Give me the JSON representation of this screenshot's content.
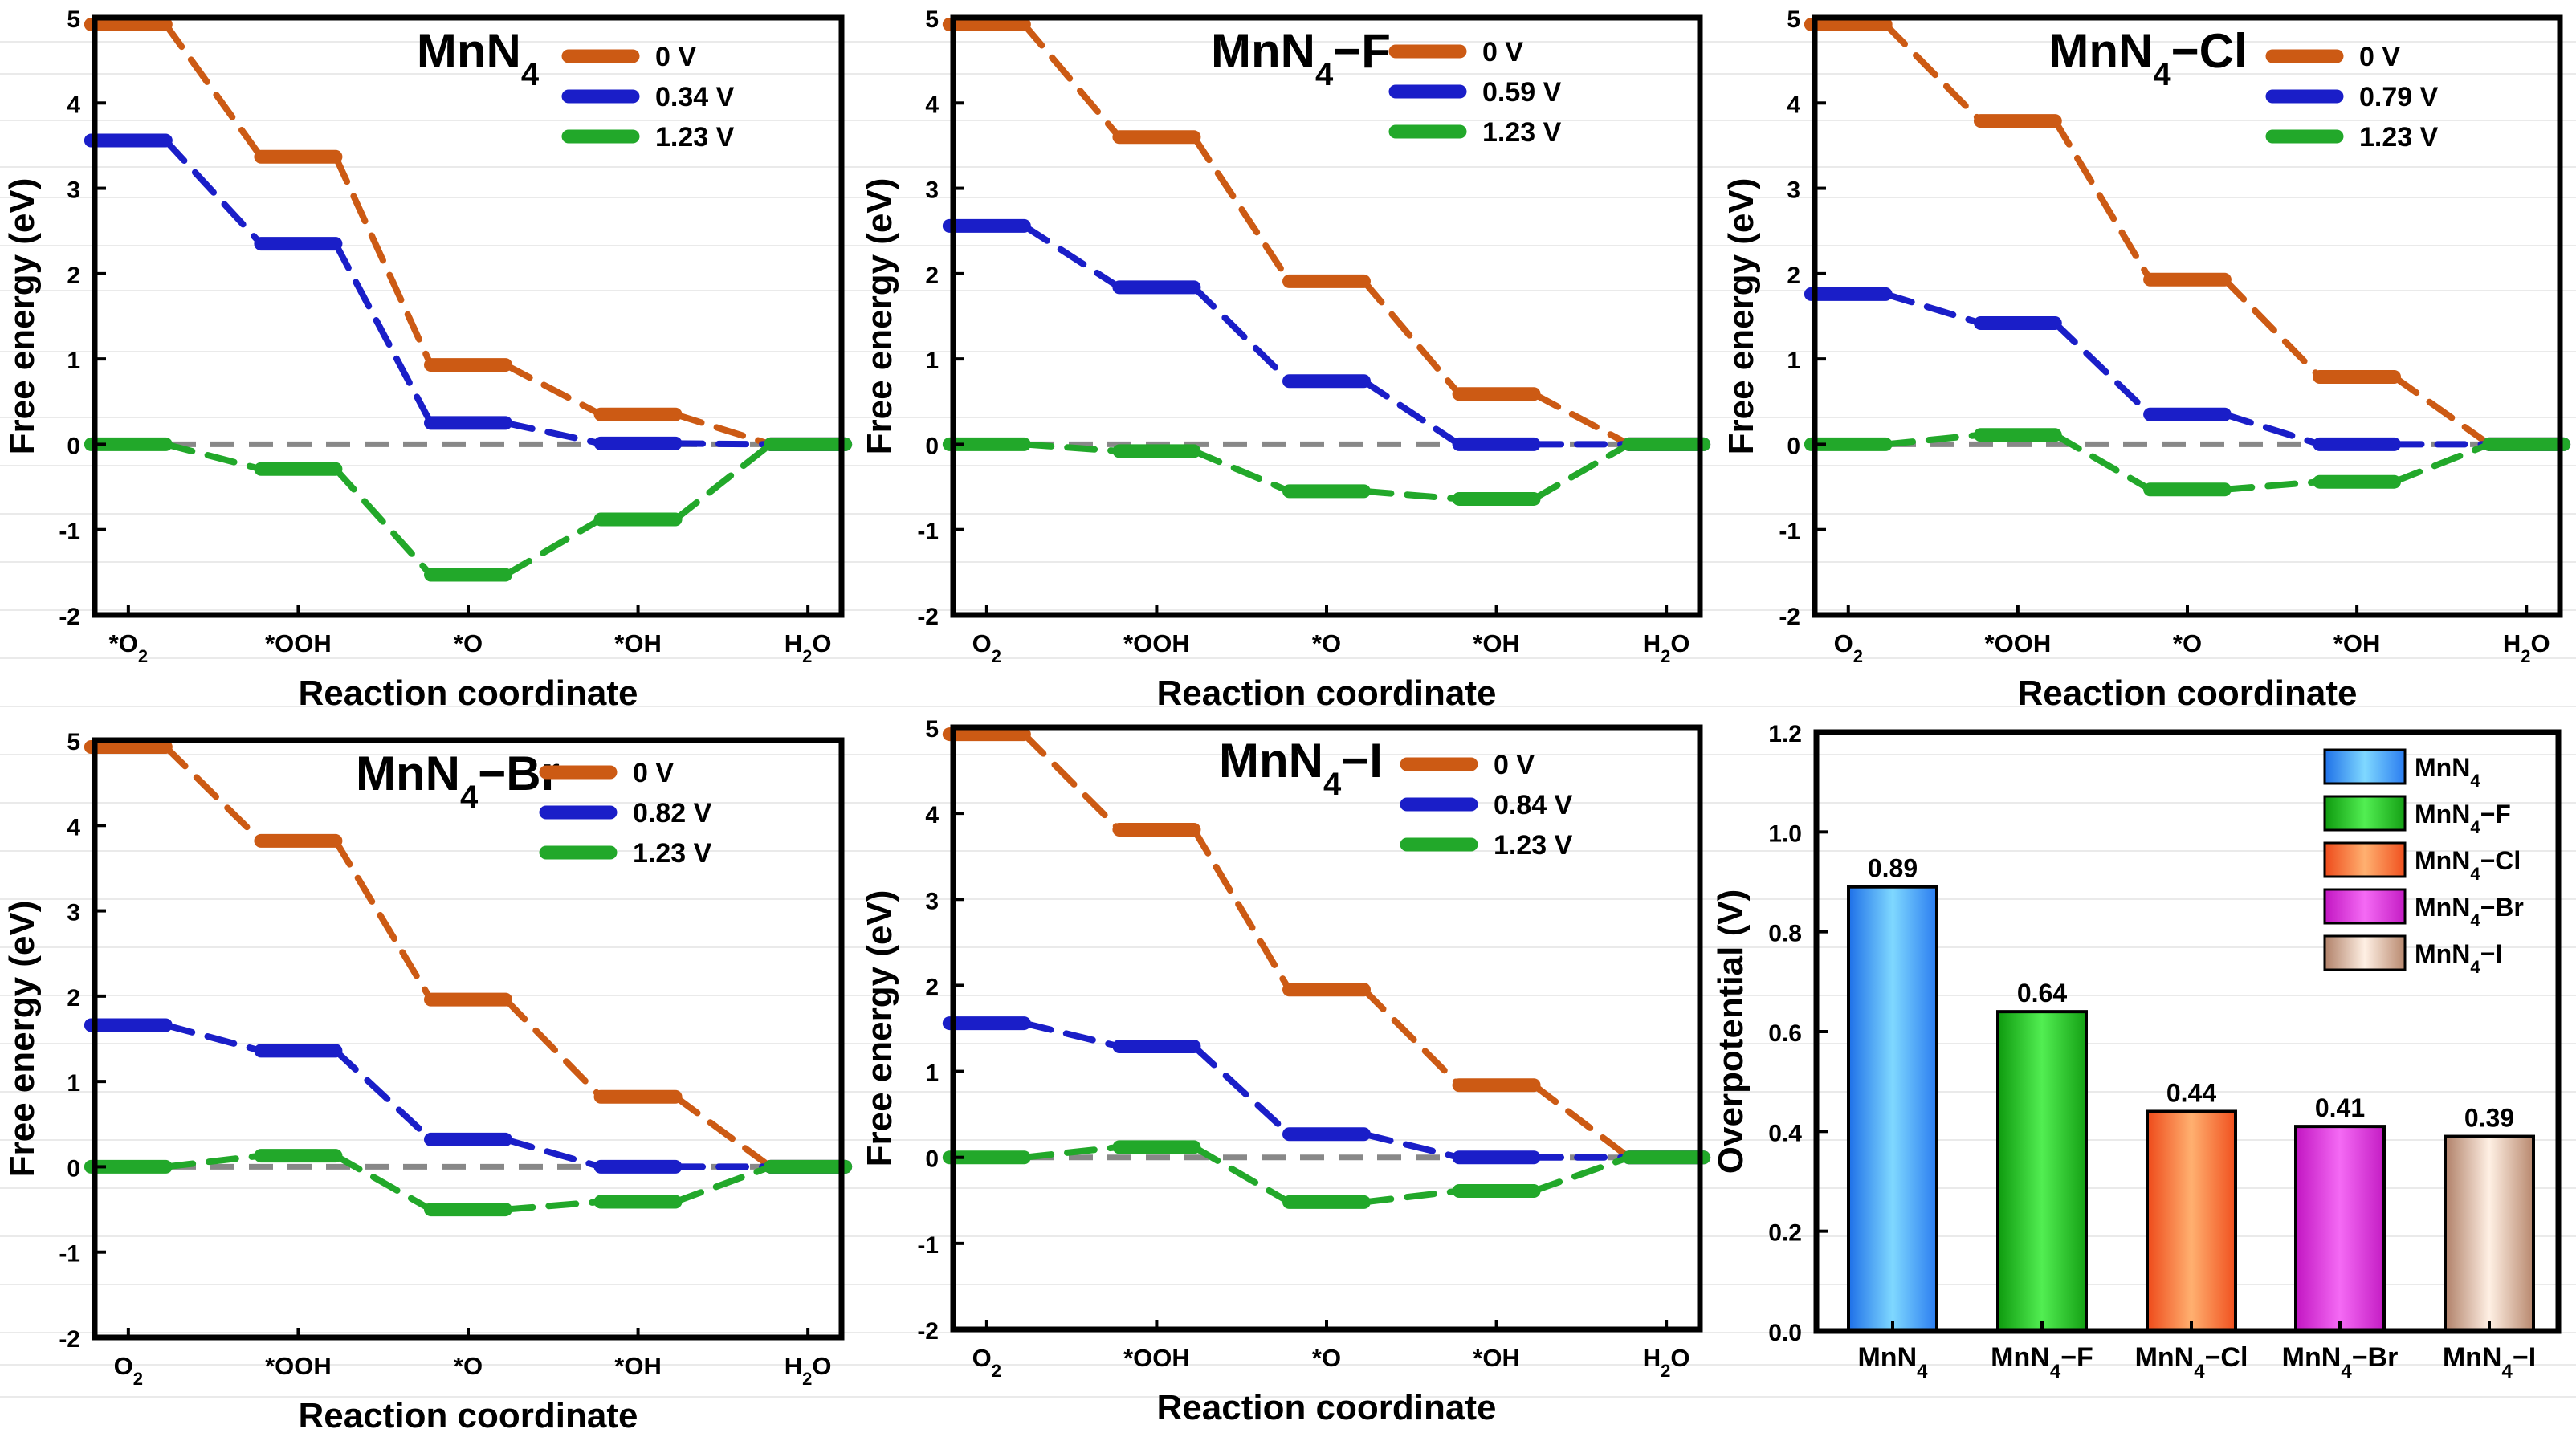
{
  "colors": {
    "v0": "#CC5A14",
    "vlim": "#1A1EC8",
    "v123": "#22A82A",
    "zero_line": "#888888",
    "axis": "#000000"
  },
  "xcategories": [
    {
      "main": "*O",
      "sub": "2"
    },
    {
      "main": "*OOH",
      "sub": ""
    },
    {
      "main": "*O",
      "sub": ""
    },
    {
      "main": "*OH",
      "sub": ""
    },
    {
      "main": "H",
      "sub": "2",
      "tail": "O"
    }
  ],
  "chart_data": [
    {
      "type": "line",
      "subtype": "free-energy-step-diagram",
      "title": {
        "main": "MnN",
        "sub": "4",
        "tail": ""
      },
      "xlabel": "Reaction coordinate",
      "ylabel": "Free energy (eV)",
      "ylim": [
        -2,
        5
      ],
      "yticks": [
        "-2",
        "-1",
        "0",
        "1",
        "2",
        "3",
        "4",
        "5"
      ],
      "xticks": [
        {
          "main": "*O",
          "sub": "2"
        },
        {
          "main": "*OOH",
          "sub": ""
        },
        {
          "main": "*O",
          "sub": ""
        },
        {
          "main": "*OH",
          "sub": ""
        },
        {
          "main": "H",
          "sub": "2",
          "tail": "O"
        }
      ],
      "legend_position": "top-right",
      "series": [
        {
          "name": "0 V",
          "color": "#CC5A14",
          "values": [
            4.92,
            3.37,
            0.93,
            0.35,
            0
          ]
        },
        {
          "name": "0.34 V",
          "color": "#1A1EC8",
          "values": [
            3.56,
            2.35,
            0.25,
            0.01,
            0
          ]
        },
        {
          "name": "1.23 V",
          "color": "#22A82A",
          "values": [
            0,
            -0.29,
            -1.53,
            -0.88,
            0
          ]
        }
      ]
    },
    {
      "type": "line",
      "subtype": "free-energy-step-diagram",
      "title": {
        "main": "MnN",
        "sub": "4",
        "tail": "−F"
      },
      "xlabel": "Reaction coordinate",
      "ylabel": "Free energy (eV)",
      "ylim": [
        -2,
        5
      ],
      "yticks": [
        "-2",
        "-1",
        "0",
        "1",
        "2",
        "3",
        "4",
        "5"
      ],
      "xticks": [
        {
          "main": "O",
          "sub": "2"
        },
        {
          "main": "*OOH",
          "sub": ""
        },
        {
          "main": "*O",
          "sub": ""
        },
        {
          "main": "*OH",
          "sub": ""
        },
        {
          "main": "H",
          "sub": "2",
          "tail": "O"
        }
      ],
      "legend_position": "top-right",
      "series": [
        {
          "name": "0 V",
          "color": "#CC5A14",
          "values": [
            4.92,
            3.6,
            1.91,
            0.59,
            0
          ]
        },
        {
          "name": "0.59 V",
          "color": "#1A1EC8",
          "values": [
            2.56,
            1.84,
            0.74,
            0,
            0
          ]
        },
        {
          "name": "1.23 V",
          "color": "#22A82A",
          "values": [
            0,
            -0.08,
            -0.55,
            -0.64,
            0
          ]
        }
      ]
    },
    {
      "type": "line",
      "subtype": "free-energy-step-diagram",
      "title": {
        "main": "MnN",
        "sub": "4",
        "tail": "−Cl"
      },
      "xlabel": "Reaction coordinate",
      "ylabel": "Free energy (eV)",
      "ylim": [
        -2,
        5
      ],
      "yticks": [
        "-2",
        "-1",
        "0",
        "1",
        "2",
        "3",
        "4",
        "5"
      ],
      "xticks": [
        {
          "main": "O",
          "sub": "2"
        },
        {
          "main": "*OOH",
          "sub": ""
        },
        {
          "main": "*O",
          "sub": ""
        },
        {
          "main": "*OH",
          "sub": ""
        },
        {
          "main": "H",
          "sub": "2",
          "tail": "O"
        }
      ],
      "legend_position": "top-right",
      "series": [
        {
          "name": "0 V",
          "color": "#CC5A14",
          "values": [
            4.92,
            3.79,
            1.93,
            0.79,
            0
          ]
        },
        {
          "name": "0.79 V",
          "color": "#1A1EC8",
          "values": [
            1.76,
            1.42,
            0.35,
            0,
            0
          ]
        },
        {
          "name": "1.23 V",
          "color": "#22A82A",
          "values": [
            0,
            0.11,
            -0.53,
            -0.44,
            0
          ]
        }
      ]
    },
    {
      "type": "line",
      "subtype": "free-energy-step-diagram",
      "title": {
        "main": "MnN",
        "sub": "4",
        "tail": "−Br"
      },
      "xlabel": "Reaction coordinate",
      "ylabel": "Free energy (eV)",
      "ylim": [
        -2,
        5
      ],
      "yticks": [
        "-2",
        "-1",
        "0",
        "1",
        "2",
        "3",
        "4",
        "5"
      ],
      "xticks": [
        {
          "main": "O",
          "sub": "2"
        },
        {
          "main": "*OOH",
          "sub": ""
        },
        {
          "main": "*O",
          "sub": ""
        },
        {
          "main": "*OH",
          "sub": ""
        },
        {
          "main": "H",
          "sub": "2",
          "tail": "O"
        }
      ],
      "legend_position": "top-right",
      "series": [
        {
          "name": "0 V",
          "color": "#CC5A14",
          "values": [
            4.92,
            3.82,
            1.96,
            0.82,
            0
          ]
        },
        {
          "name": "0.82 V",
          "color": "#1A1EC8",
          "values": [
            1.66,
            1.36,
            0.32,
            0,
            0
          ]
        },
        {
          "name": "1.23 V",
          "color": "#22A82A",
          "values": [
            0,
            0.13,
            -0.5,
            -0.41,
            0
          ]
        }
      ]
    },
    {
      "type": "line",
      "subtype": "free-energy-step-diagram",
      "title": {
        "main": "MnN",
        "sub": "4",
        "tail": "−I"
      },
      "xlabel": "Reaction coordinate",
      "ylabel": "Free energy (eV)",
      "ylim": [
        -2,
        5
      ],
      "yticks": [
        "-2",
        "-1",
        "0",
        "1",
        "2",
        "3",
        "4",
        "5"
      ],
      "xticks": [
        {
          "main": "O",
          "sub": "2"
        },
        {
          "main": "*OOH",
          "sub": ""
        },
        {
          "main": "*O",
          "sub": ""
        },
        {
          "main": "*OH",
          "sub": ""
        },
        {
          "main": "H",
          "sub": "2",
          "tail": "O"
        }
      ],
      "legend_position": "top-right",
      "series": [
        {
          "name": "0 V",
          "color": "#CC5A14",
          "values": [
            4.92,
            3.81,
            1.95,
            0.84,
            0
          ]
        },
        {
          "name": "0.84 V",
          "color": "#1A1EC8",
          "values": [
            1.56,
            1.29,
            0.27,
            0,
            0
          ]
        },
        {
          "name": "1.23 V",
          "color": "#22A82A",
          "values": [
            0,
            0.12,
            -0.52,
            -0.39,
            0
          ]
        }
      ]
    },
    {
      "type": "bar",
      "title": "",
      "xlabel": "",
      "ylabel": "Overpotential (V)",
      "ylim": [
        0,
        1.2
      ],
      "yticks": [
        "0.0",
        "0.2",
        "0.4",
        "0.6",
        "0.8",
        "1.0",
        "1.2"
      ],
      "legend_position": "top-right",
      "categories": [
        {
          "main": "MnN",
          "sub": "4",
          "tail": ""
        },
        {
          "main": "MnN",
          "sub": "4",
          "tail": "−F"
        },
        {
          "main": "MnN",
          "sub": "4",
          "tail": "−Cl"
        },
        {
          "main": "MnN",
          "sub": "4",
          "tail": "−Br"
        },
        {
          "main": "MnN",
          "sub": "4",
          "tail": "−I"
        }
      ],
      "values": [
        0.89,
        0.64,
        0.44,
        0.41,
        0.39
      ],
      "value_labels": [
        "0.89",
        "0.64",
        "0.44",
        "0.41",
        "0.39"
      ],
      "bar_colors": [
        [
          "#1E70E8",
          "#7FD8FF",
          "#2A7CF0"
        ],
        [
          "#0E9A0E",
          "#52EE52",
          "#14A014"
        ],
        [
          "#EE4A1A",
          "#FFB070",
          "#F0501E"
        ],
        [
          "#C216C2",
          "#F46AF4",
          "#C41CC4"
        ],
        [
          "#B08068",
          "#FFF0E4",
          "#B8886E"
        ]
      ]
    }
  ]
}
